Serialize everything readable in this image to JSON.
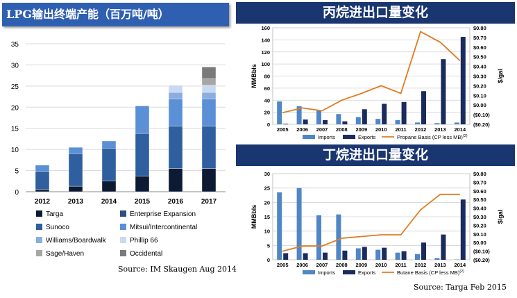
{
  "chart_data": [
    {
      "type": "bar",
      "stacked": true,
      "title": "LPG输出终端产能（百万吨/吨）",
      "categories": [
        "2012",
        "2013",
        "2014",
        "2015",
        "2016",
        "2017"
      ],
      "ylim": [
        0,
        35
      ],
      "yticks": [
        0,
        5,
        10,
        15,
        20,
        25,
        30,
        35
      ],
      "grid": true,
      "legend_placement": "bottom",
      "series": [
        {
          "name": "Targa",
          "color": "#0d1a33",
          "values": [
            0.5,
            1.3,
            2.5,
            3.7,
            5.5,
            5.5
          ]
        },
        {
          "name": "Enterprise Expansion",
          "color": "#2d4f82",
          "values": [
            0,
            0,
            0,
            0,
            0,
            0
          ]
        },
        {
          "name": "Sunoco",
          "color": "#2f5f9e",
          "values": [
            4.3,
            7.7,
            7.8,
            10.1,
            10,
            10
          ]
        },
        {
          "name": "Mitsui/Intercontinental",
          "color": "#5b8fd6",
          "values": [
            1.5,
            1.5,
            1.7,
            6.5,
            6.5,
            6.5
          ]
        },
        {
          "name": "Williams/Boardwalk",
          "color": "#8aaede",
          "values": [
            0,
            0,
            0,
            0,
            1.5,
            1.5
          ]
        },
        {
          "name": "Phillip 66",
          "color": "#c9d9f2",
          "values": [
            0,
            0,
            0,
            0,
            1.7,
            1.7
          ]
        },
        {
          "name": "Sage/Haven",
          "color": "#a6a6a6",
          "values": [
            0,
            0,
            0,
            0,
            0,
            1.5
          ]
        },
        {
          "name": "Occidental",
          "color": "#7a7a7a",
          "values": [
            0,
            0,
            0,
            0,
            0,
            2.8
          ]
        }
      ],
      "source": "Source: IM Skaugen Aug 2014"
    },
    {
      "type": "bar",
      "title": "丙烷进出口量变化",
      "categories": [
        "2005",
        "2006",
        "2007",
        "2008",
        "2009",
        "2010",
        "2011",
        "2012",
        "2013",
        "2014"
      ],
      "ylabel": "MMBbls",
      "ylim": [
        0,
        160
      ],
      "yticks": [
        0,
        20,
        40,
        60,
        80,
        100,
        120,
        140,
        160
      ],
      "y2label": "$/gal",
      "y2lim": [
        -0.2,
        0.8
      ],
      "y2ticks": [
        "($0.20)",
        "($0.10)",
        "$0.00",
        "$0.10",
        "$0.20",
        "$0.30",
        "$0.40",
        "$0.50",
        "$0.60",
        "$0.70",
        "$0.80"
      ],
      "grid": true,
      "legend_placement": "bottom",
      "series": [
        {
          "name": "Imports",
          "color": "#4f86c6",
          "values": [
            38,
            30,
            23,
            17,
            12,
            9,
            7,
            3,
            2,
            3
          ]
        },
        {
          "name": "Exports",
          "color": "#1a2b5e",
          "values": [
            1,
            8,
            7,
            5,
            25,
            34,
            37,
            55,
            108,
            145
          ]
        },
        {
          "name": "Propane Basis  (CP less MB)",
          "sup": "(2)",
          "color": "#e07b1f",
          "type": "line",
          "axis": "y2",
          "values": [
            -0.08,
            -0.03,
            -0.06,
            0.05,
            0.12,
            0.2,
            0.12,
            0.76,
            0.65,
            0.46
          ]
        }
      ]
    },
    {
      "type": "bar",
      "title": "丁烷进出口量变化",
      "categories": [
        "2005",
        "2006",
        "2007",
        "2008",
        "2009",
        "2010",
        "2011",
        "2012",
        "2013",
        "2014"
      ],
      "ylabel": "MMBbls",
      "ylim": [
        0,
        30
      ],
      "yticks": [
        0,
        5,
        10,
        15,
        20,
        25,
        30
      ],
      "y2label": "$/gal",
      "y2lim": [
        -0.2,
        0.8
      ],
      "y2ticks": [
        "($0.20)",
        "($0.10)",
        "$0.00",
        "$0.10",
        "$0.20",
        "$0.30",
        "$0.40",
        "$0.50",
        "$0.60",
        "$0.70",
        "$0.80"
      ],
      "grid": true,
      "legend_placement": "bottom",
      "series": [
        {
          "name": "Imports",
          "color": "#4f86c6",
          "values": [
            23.5,
            25,
            15.5,
            15.8,
            4,
            3.5,
            2.5,
            2,
            0.6,
            0.1
          ]
        },
        {
          "name": "Exports",
          "color": "#1a2b5e",
          "values": [
            2.3,
            2.3,
            2.5,
            3.2,
            4.5,
            4.2,
            3,
            6,
            8.8,
            21
          ]
        },
        {
          "name": "Butane Basis  (CP less MB)",
          "sup": "(2)",
          "color": "#e07b1f",
          "type": "line",
          "axis": "y2",
          "values": [
            -0.1,
            -0.04,
            -0.04,
            0.05,
            0.07,
            0.09,
            0.09,
            0.38,
            0.56,
            0.56
          ]
        }
      ],
      "source": "Source: Targa Feb 2015"
    }
  ]
}
